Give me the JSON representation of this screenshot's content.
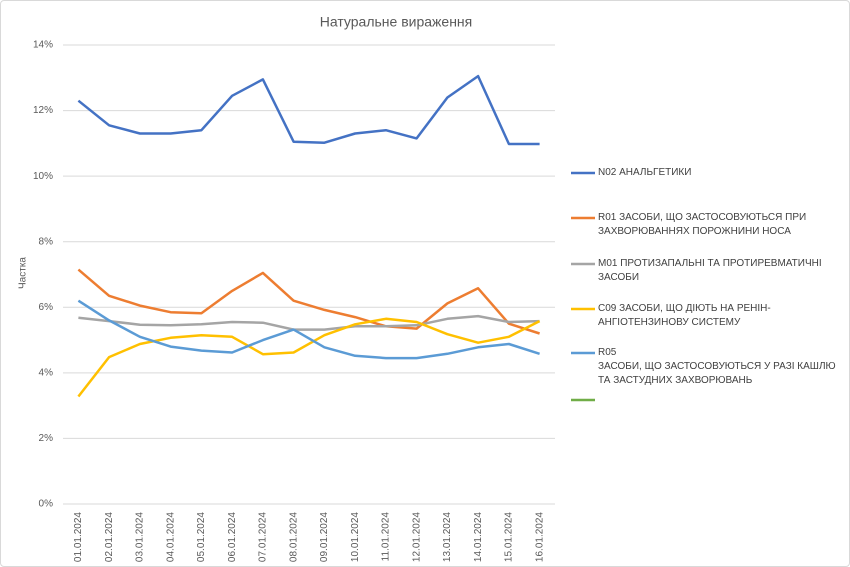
{
  "chart_data": {
    "type": "line",
    "title": "Натуральне вираження",
    "y_label": "Частка",
    "categories": [
      "01.01.2024",
      "02.01.2024",
      "03.01.2024",
      "04.01.2024",
      "05.01.2024",
      "06.01.2024",
      "07.01.2024",
      "08.01.2024",
      "09.01.2024",
      "10.01.2024",
      "11.01.2024",
      "12.01.2024",
      "13.01.2024",
      "14.01.2024",
      "15.01.2024",
      "16.01.2024"
    ],
    "ylim": [
      0,
      14
    ],
    "yticks": [
      {
        "value": 0,
        "label": "0%"
      },
      {
        "value": 2,
        "label": "2%"
      },
      {
        "value": 4,
        "label": "4%"
      },
      {
        "value": 6,
        "label": "6%"
      },
      {
        "value": 8,
        "label": "8%"
      },
      {
        "value": 10,
        "label": "10%"
      },
      {
        "value": 12,
        "label": "12%"
      },
      {
        "value": 14,
        "label": "14%"
      }
    ],
    "grid": true,
    "series": [
      {
        "name": "N02 АНАЛЬГЕТИКИ",
        "color": "#4472c4",
        "values": [
          12.3,
          11.55,
          11.3,
          11.3,
          11.4,
          12.45,
          12.95,
          11.05,
          11.02,
          11.3,
          11.4,
          11.15,
          12.4,
          13.05,
          10.98,
          10.98
        ]
      },
      {
        "name": "R01 ЗАСОБИ, ЩО ЗАСТОСОВУЮТЬСЯ ПРИ ЗАХВОРЮВАННЯХ ПОРОЖНИНИ НОСА",
        "color": "#ed7d31",
        "values": [
          7.15,
          6.35,
          6.05,
          5.85,
          5.82,
          6.5,
          7.05,
          6.2,
          5.92,
          5.7,
          5.42,
          5.35,
          6.12,
          6.58,
          5.5,
          5.2
        ]
      },
      {
        "name": "M01 ПРОТИЗАПАЛЬНІ ТА ПРОТИРЕВМАТИЧНІ ЗАСОБИ",
        "color": "#a5a5a5",
        "values": [
          5.68,
          5.58,
          5.47,
          5.45,
          5.48,
          5.55,
          5.53,
          5.32,
          5.32,
          5.42,
          5.42,
          5.45,
          5.65,
          5.73,
          5.55,
          5.58
        ]
      },
      {
        "name": "C09 ЗАСОБИ, ЩО ДІЮТЬ НА РЕНІН-АНГІОТЕНЗИНОВУ СИСТЕМУ",
        "color": "#ffc000",
        "values": [
          3.28,
          4.48,
          4.88,
          5.07,
          5.15,
          5.1,
          4.57,
          4.62,
          5.15,
          5.48,
          5.65,
          5.55,
          5.18,
          4.92,
          5.1,
          5.58
        ]
      },
      {
        "name": "R05\nЗАСОБИ, ЩО ЗАСТОСОВУЮТЬСЯ У РАЗІ КАШЛЮ ТА ЗАСТУДНИХ ЗАХВОРЮВАНЬ",
        "color": "#5b9bd5",
        "values": [
          6.2,
          5.6,
          5.1,
          4.8,
          4.68,
          4.62,
          5.0,
          5.32,
          4.78,
          4.52,
          4.45,
          4.45,
          4.58,
          4.78,
          4.88,
          4.58
        ]
      },
      {
        "name": null,
        "color": "#70ad47",
        "values": [
          null,
          null,
          null,
          null,
          null,
          null,
          null,
          null,
          null,
          null,
          null,
          null,
          null,
          null,
          null,
          null
        ]
      }
    ]
  }
}
